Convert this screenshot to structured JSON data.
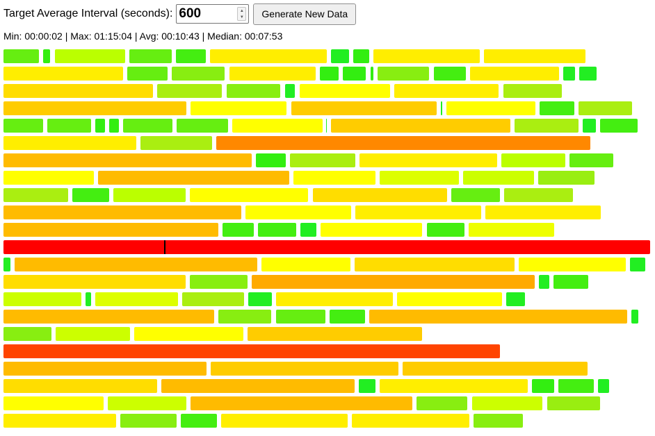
{
  "controls": {
    "interval_label": "Target Average Interval (seconds):",
    "interval_value": "600",
    "generate_label": "Generate New Data"
  },
  "stats": {
    "text": "Min: 00:00:02 | Max: 01:15:04 | Avg: 00:10:43 | Median: 00:07:53"
  },
  "timeline": {
    "rows": [
      [
        [
          5,
          56,
          "#66ee11"
        ],
        [
          62,
          72,
          "#33ee11"
        ],
        [
          79,
          180,
          "#bbff00"
        ],
        [
          186,
          247,
          "#66ee11"
        ],
        [
          253,
          296,
          "#44ee11"
        ],
        [
          302,
          470,
          "#ffee00"
        ],
        [
          476,
          502,
          "#22ee22"
        ],
        [
          508,
          531,
          "#33ee11"
        ],
        [
          537,
          690,
          "#ffee00"
        ],
        [
          696,
          842,
          "#ffee00"
        ]
      ],
      [
        [
          5,
          177,
          "#ffee00"
        ],
        [
          183,
          241,
          "#66ee11"
        ],
        [
          247,
          323,
          "#88ee11"
        ],
        [
          330,
          454,
          "#ffee00"
        ],
        [
          460,
          487,
          "#33ee11"
        ],
        [
          493,
          526,
          "#33ee11"
        ],
        [
          533,
          537,
          "#33ee11"
        ],
        [
          543,
          617,
          "#88ee11"
        ],
        [
          624,
          670,
          "#44ee11"
        ],
        [
          676,
          804,
          "#ffee00"
        ],
        [
          810,
          827,
          "#22ee22"
        ],
        [
          833,
          858,
          "#22ee22"
        ]
      ],
      [
        [
          5,
          220,
          "#ffdd00"
        ],
        [
          226,
          319,
          "#aaee11"
        ],
        [
          326,
          403,
          "#88ee11"
        ],
        [
          410,
          424,
          "#22ee22"
        ],
        [
          431,
          561,
          "#ffff00"
        ],
        [
          567,
          717,
          "#ffee00"
        ],
        [
          724,
          808,
          "#aaee11"
        ]
      ],
      [
        [
          5,
          268,
          "#ffcc00"
        ],
        [
          274,
          412,
          "#ffff00"
        ],
        [
          419,
          628,
          "#ffcc00"
        ],
        [
          634,
          636,
          "#22ee22"
        ],
        [
          642,
          770,
          "#ffff00"
        ],
        [
          776,
          826,
          "#44ee11"
        ],
        [
          832,
          909,
          "#aaee11"
        ]
      ],
      [
        [
          5,
          62,
          "#66ee11"
        ],
        [
          68,
          131,
          "#66ee11"
        ],
        [
          137,
          151,
          "#33ee11"
        ],
        [
          157,
          171,
          "#33ee11"
        ],
        [
          177,
          248,
          "#66ee11"
        ],
        [
          254,
          328,
          "#66ee11"
        ],
        [
          334,
          464,
          "#ffff00"
        ],
        [
          469,
          470,
          "#22ee22"
        ],
        [
          476,
          734,
          "#ffcc00"
        ],
        [
          740,
          832,
          "#aaee11"
        ],
        [
          838,
          857,
          "#22ee22"
        ],
        [
          863,
          917,
          "#44ee11"
        ]
      ],
      [
        [
          5,
          196,
          "#ffee00"
        ],
        [
          202,
          305,
          "#aaee11"
        ],
        [
          311,
          849,
          "#ff8800"
        ]
      ],
      [
        [
          5,
          362,
          "#ffbb00"
        ],
        [
          368,
          411,
          "#33ee11"
        ],
        [
          417,
          511,
          "#aaee11"
        ],
        [
          517,
          715,
          "#ffee00"
        ],
        [
          721,
          813,
          "#bbff00"
        ],
        [
          819,
          882,
          "#66ee11"
        ]
      ],
      [
        [
          5,
          135,
          "#ffff00"
        ],
        [
          141,
          416,
          "#ffbb00"
        ],
        [
          422,
          540,
          "#ffff00"
        ],
        [
          546,
          660,
          "#ddff00"
        ],
        [
          666,
          768,
          "#ccff00"
        ],
        [
          774,
          855,
          "#99ee11"
        ]
      ],
      [
        [
          5,
          98,
          "#aaee11"
        ],
        [
          104,
          157,
          "#44ee11"
        ],
        [
          163,
          267,
          "#bbff00"
        ],
        [
          273,
          443,
          "#ffff00"
        ],
        [
          450,
          643,
          "#ffdd00"
        ],
        [
          649,
          719,
          "#66ee11"
        ],
        [
          725,
          824,
          "#aaee11"
        ]
      ],
      [
        [
          5,
          347,
          "#ffbb00"
        ],
        [
          353,
          505,
          "#ffff00"
        ],
        [
          511,
          692,
          "#ffee00"
        ],
        [
          698,
          864,
          "#ffee00"
        ]
      ],
      [
        [
          5,
          314,
          "#ffbb00"
        ],
        [
          320,
          365,
          "#44ee11"
        ],
        [
          371,
          426,
          "#44ee11"
        ],
        [
          432,
          455,
          "#22ee22"
        ],
        [
          461,
          607,
          "#ffff00"
        ],
        [
          614,
          668,
          "#44ee11"
        ],
        [
          674,
          797,
          "#eeff00"
        ]
      ],
      [
        [
          5,
          935,
          "#ff0000"
        ]
      ],
      [
        [
          5,
          15,
          "#22ee22"
        ],
        [
          21,
          370,
          "#ffbb00"
        ],
        [
          376,
          504,
          "#ffff00"
        ],
        [
          510,
          740,
          "#ffdd00"
        ],
        [
          746,
          900,
          "#ffff00"
        ],
        [
          906,
          928,
          "#22ee22"
        ]
      ],
      [
        [
          5,
          267,
          "#ffdd00"
        ],
        [
          273,
          356,
          "#88ee11"
        ],
        [
          362,
          769,
          "#ffaa00"
        ],
        [
          775,
          790,
          "#22ee22"
        ],
        [
          796,
          846,
          "#44ee11"
        ]
      ],
      [
        [
          5,
          117,
          "#ccff00"
        ],
        [
          123,
          131,
          "#22ee22"
        ],
        [
          137,
          256,
          "#ddff00"
        ],
        [
          262,
          351,
          "#aaee11"
        ],
        [
          357,
          391,
          "#22ee22"
        ],
        [
          397,
          565,
          "#ffee00"
        ],
        [
          571,
          722,
          "#ffff00"
        ],
        [
          728,
          755,
          "#22ee22"
        ]
      ],
      [
        [
          5,
          308,
          "#ffbb00"
        ],
        [
          314,
          390,
          "#88ee11"
        ],
        [
          397,
          468,
          "#66ee11"
        ],
        [
          474,
          525,
          "#44ee11"
        ],
        [
          531,
          902,
          "#ffbb00"
        ],
        [
          908,
          918,
          "#22ee22"
        ]
      ],
      [
        [
          5,
          74,
          "#88ee11"
        ],
        [
          80,
          187,
          "#ccff00"
        ],
        [
          193,
          350,
          "#ffff00"
        ],
        [
          356,
          607,
          "#ffcc00"
        ]
      ],
      [
        [
          5,
          719,
          "#ff4400"
        ]
      ],
      [
        [
          5,
          297,
          "#ffbb00"
        ],
        [
          303,
          573,
          "#ffcc00"
        ],
        [
          579,
          845,
          "#ffcc00"
        ]
      ],
      [
        [
          5,
          226,
          "#ffdd00"
        ],
        [
          232,
          510,
          "#ffbb00"
        ],
        [
          516,
          540,
          "#22ee22"
        ],
        [
          546,
          759,
          "#ffee00"
        ],
        [
          765,
          797,
          "#33ee11"
        ],
        [
          803,
          854,
          "#44ee11"
        ],
        [
          860,
          876,
          "#22ee22"
        ]
      ],
      [
        [
          5,
          149,
          "#ffff00"
        ],
        [
          155,
          268,
          "#ccff00"
        ],
        [
          274,
          593,
          "#ffbb00"
        ],
        [
          599,
          672,
          "#88ee11"
        ],
        [
          679,
          780,
          "#ccff00"
        ],
        [
          787,
          863,
          "#99ee11"
        ]
      ],
      [
        [
          5,
          167,
          "#ffee00"
        ],
        [
          173,
          254,
          "#88ee11"
        ],
        [
          260,
          312,
          "#44ee11"
        ],
        [
          318,
          500,
          "#ffee00"
        ],
        [
          506,
          675,
          "#ffee00"
        ],
        [
          681,
          752,
          "#88ee11"
        ]
      ]
    ],
    "marker": {
      "row": 11,
      "x": 236
    }
  }
}
